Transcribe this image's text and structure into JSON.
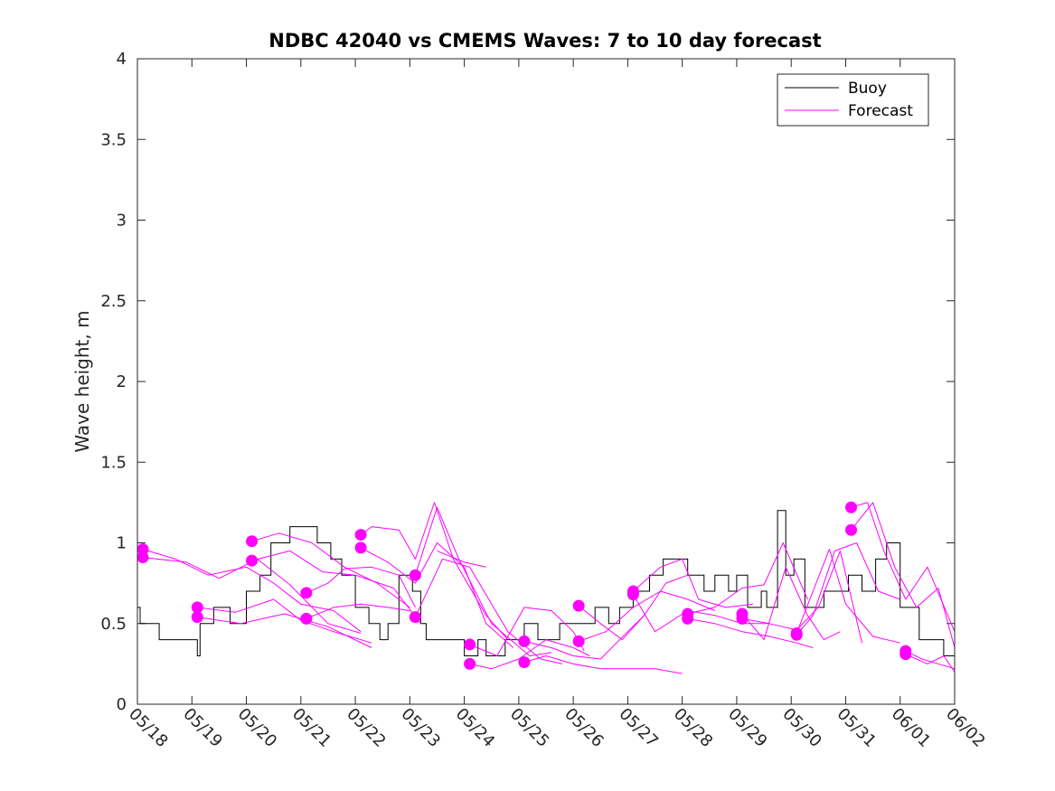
{
  "chart_data": {
    "type": "line",
    "title": "NDBC 42040 vs CMEMS Waves: 7 to 10 day forecast",
    "xlabel": "",
    "ylabel": "Wave height, m",
    "x_ticks": [
      "05/18",
      "05/19",
      "05/20",
      "05/21",
      "05/22",
      "05/23",
      "05/24",
      "05/25",
      "05/26",
      "05/27",
      "05/28",
      "05/29",
      "05/30",
      "05/31",
      "06/01",
      "06/02"
    ],
    "y_ticks": [
      "0",
      "0.5",
      "1",
      "1.5",
      "2",
      "2.5",
      "3",
      "3.5",
      "4"
    ],
    "xlim": [
      0,
      15
    ],
    "ylim": [
      0,
      4
    ],
    "x_unit": "days after 05/18",
    "legend": {
      "position": "top-right",
      "entries": [
        "Buoy",
        "Forecast"
      ]
    },
    "colors": {
      "buoy": "#000000",
      "forecast": "#ff00ff"
    },
    "buoy": {
      "name": "Buoy",
      "x": [
        0,
        0.05,
        0.05,
        0.4,
        0.4,
        1.1,
        1.1,
        1.15,
        1.15,
        1.4,
        1.4,
        1.7,
        1.7,
        2.0,
        2.0,
        2.25,
        2.25,
        2.45,
        2.45,
        2.8,
        2.8,
        3.3,
        3.3,
        3.55,
        3.55,
        3.75,
        3.75,
        4.0,
        4.0,
        4.25,
        4.25,
        4.45,
        4.45,
        4.6,
        4.6,
        4.8,
        4.8,
        5.05,
        5.05,
        5.2,
        5.2,
        5.3,
        5.3,
        6.0,
        6.0,
        6.25,
        6.25,
        6.4,
        6.4,
        6.75,
        6.75,
        7.1,
        7.1,
        7.35,
        7.35,
        7.75,
        7.75,
        8.4,
        8.4,
        8.65,
        8.65,
        8.85,
        8.85,
        9.1,
        9.1,
        9.4,
        9.4,
        9.65,
        9.65,
        10.1,
        10.1,
        10.4,
        10.4,
        10.6,
        10.6,
        10.85,
        10.85,
        11.0,
        11.0,
        11.2,
        11.2,
        11.45,
        11.45,
        11.55,
        11.55,
        11.75,
        11.75,
        11.9,
        11.9,
        12.05,
        12.05,
        12.25,
        12.25,
        12.6,
        12.6,
        13.05,
        13.05,
        13.3,
        13.3,
        13.55,
        13.55,
        13.75,
        13.75,
        14.0,
        14.0,
        14.35,
        14.35,
        14.8,
        14.8,
        15.0
      ],
      "values": [
        0.6,
        0.6,
        0.5,
        0.5,
        0.4,
        0.4,
        0.3,
        0.3,
        0.5,
        0.5,
        0.6,
        0.6,
        0.5,
        0.5,
        0.7,
        0.7,
        0.8,
        0.8,
        1.0,
        1.0,
        1.1,
        1.1,
        1.0,
        1.0,
        0.9,
        0.9,
        0.8,
        0.8,
        0.6,
        0.6,
        0.5,
        0.5,
        0.4,
        0.4,
        0.5,
        0.5,
        0.8,
        0.8,
        0.7,
        0.7,
        0.5,
        0.5,
        0.4,
        0.4,
        0.3,
        0.3,
        0.4,
        0.4,
        0.3,
        0.3,
        0.4,
        0.4,
        0.5,
        0.5,
        0.4,
        0.4,
        0.5,
        0.5,
        0.6,
        0.6,
        0.5,
        0.5,
        0.6,
        0.6,
        0.7,
        0.7,
        0.8,
        0.8,
        0.9,
        0.9,
        0.8,
        0.8,
        0.7,
        0.7,
        0.8,
        0.8,
        0.7,
        0.7,
        0.8,
        0.8,
        0.6,
        0.6,
        0.7,
        0.7,
        0.6,
        0.6,
        1.2,
        1.2,
        0.8,
        0.8,
        0.9,
        0.9,
        0.6,
        0.6,
        0.7,
        0.7,
        0.8,
        0.8,
        0.7,
        0.7,
        0.9,
        0.9,
        1.0,
        1.0,
        0.6,
        0.6,
        0.4,
        0.4,
        0.3,
        0.3
      ]
    },
    "forecast_series": [
      {
        "x": [
          0.1,
          0.7,
          1.3,
          2.0,
          2.5,
          3.0,
          3.6,
          4.1
        ],
        "values": [
          0.96,
          0.9,
          0.8,
          0.85,
          0.75,
          0.62,
          0.58,
          0.45
        ]
      },
      {
        "x": [
          0.1,
          0.9,
          1.5,
          2.2,
          2.8,
          3.5,
          4.1
        ],
        "values": [
          0.91,
          0.88,
          0.78,
          0.9,
          0.74,
          0.5,
          0.44
        ]
      },
      {
        "x": [
          1.1,
          1.8,
          2.5,
          3.0,
          3.6,
          4.3
        ],
        "values": [
          0.6,
          0.57,
          0.65,
          0.52,
          0.45,
          0.38
        ]
      },
      {
        "x": [
          1.1,
          1.9,
          2.7,
          3.5,
          4.3
        ],
        "values": [
          0.54,
          0.5,
          0.56,
          0.48,
          0.35
        ]
      },
      {
        "x": [
          2.1,
          2.6,
          3.2,
          3.8,
          4.4,
          5.0
        ],
        "values": [
          1.01,
          1.06,
          1.0,
          0.85,
          0.75,
          0.6
        ]
      },
      {
        "x": [
          2.1,
          2.8,
          3.4,
          4.0,
          4.7,
          5.2
        ],
        "values": [
          0.89,
          0.95,
          0.82,
          0.8,
          0.72,
          0.5
        ]
      },
      {
        "x": [
          3.1,
          3.5,
          3.8,
          4.3,
          4.8,
          5.1
        ],
        "values": [
          0.69,
          0.75,
          0.84,
          0.85,
          0.8,
          0.6
        ]
      },
      {
        "x": [
          3.1,
          3.6,
          4.1,
          4.6,
          5.0
        ],
        "values": [
          0.53,
          0.6,
          0.62,
          0.6,
          0.58
        ]
      },
      {
        "x": [
          4.1,
          4.3,
          4.8,
          5.1,
          5.45,
          5.8,
          6.4,
          6.8
        ],
        "values": [
          1.05,
          1.1,
          1.08,
          0.9,
          1.25,
          0.9,
          0.55,
          0.4
        ]
      },
      {
        "x": [
          4.1,
          4.6,
          5.1,
          5.5,
          6.0,
          6.4,
          6.9
        ],
        "values": [
          0.97,
          0.88,
          0.75,
          1.0,
          0.85,
          0.5,
          0.35
        ]
      },
      {
        "x": [
          5.1,
          5.5,
          5.9,
          6.5,
          7.2,
          7.6
        ],
        "values": [
          0.8,
          1.22,
          0.9,
          0.5,
          0.3,
          0.32
        ]
      },
      {
        "x": [
          5.1,
          5.6,
          6.1,
          6.8,
          7.4,
          7.8
        ],
        "values": [
          0.54,
          0.9,
          0.85,
          0.45,
          0.28,
          0.25
        ]
      },
      {
        "x": [
          5.5,
          6.0,
          6.4
        ],
        "values": [
          0.95,
          0.88,
          0.85
        ]
      },
      {
        "x": [
          6.1,
          6.6,
          7.1,
          7.6,
          8.0,
          8.2
        ],
        "values": [
          0.37,
          0.3,
          0.6,
          0.58,
          0.45,
          0.33
        ]
      },
      {
        "x": [
          6.1,
          6.5,
          7.0,
          7.5,
          8.0,
          8.3
        ],
        "values": [
          0.25,
          0.22,
          0.28,
          0.4,
          0.35,
          0.3
        ]
      },
      {
        "x": [
          7.1,
          7.6,
          8.0,
          8.5,
          9.0,
          9.3
        ],
        "values": [
          0.39,
          0.35,
          0.3,
          0.28,
          0.45,
          0.55
        ]
      },
      {
        "x": [
          7.1,
          7.5,
          8.0,
          8.5,
          9.0,
          9.5,
          10.0
        ],
        "values": [
          0.26,
          0.3,
          0.25,
          0.22,
          0.22,
          0.22,
          0.19
        ]
      },
      {
        "x": [
          8.1,
          8.5,
          8.9,
          9.3,
          9.7,
          10.1
        ],
        "values": [
          0.61,
          0.5,
          0.4,
          0.55,
          0.75,
          0.8
        ]
      },
      {
        "x": [
          8.1,
          8.6,
          9.1,
          9.6,
          10.1,
          10.6
        ],
        "values": [
          0.39,
          0.45,
          0.6,
          0.7,
          0.65,
          0.58
        ]
      },
      {
        "x": [
          9.1,
          9.6,
          10.0,
          10.3,
          10.8,
          11.3
        ],
        "values": [
          0.7,
          0.85,
          0.9,
          0.65,
          0.6,
          0.62
        ]
      },
      {
        "x": [
          9.1,
          9.5,
          10.1,
          10.6,
          11.1,
          11.6
        ],
        "values": [
          0.68,
          0.45,
          0.58,
          0.55,
          0.5,
          0.5
        ]
      },
      {
        "x": [
          10.1,
          10.6,
          11.1,
          11.5,
          11.85,
          12.3
        ],
        "values": [
          0.56,
          0.6,
          0.72,
          0.74,
          1.0,
          0.65
        ]
      },
      {
        "x": [
          10.1,
          10.6,
          11.1,
          11.6,
          12.1,
          12.4
        ],
        "values": [
          0.53,
          0.5,
          0.45,
          0.42,
          0.38,
          0.35
        ]
      },
      {
        "x": [
          11.1,
          11.5,
          11.9,
          12.3,
          12.6,
          12.9
        ],
        "values": [
          0.56,
          0.4,
          0.85,
          0.55,
          0.4,
          0.45
        ]
      },
      {
        "x": [
          11.1,
          11.6,
          12.1,
          12.5,
          12.9,
          13.3
        ],
        "values": [
          0.53,
          0.5,
          0.46,
          0.6,
          0.95,
          0.38
        ]
      },
      {
        "x": [
          12.1,
          12.4,
          12.7,
          13.0,
          13.5,
          14.0
        ],
        "values": [
          0.44,
          0.7,
          0.96,
          0.62,
          0.42,
          0.38
        ]
      },
      {
        "x": [
          12.1,
          12.4,
          12.8,
          13.2,
          13.6,
          14.0
        ],
        "values": [
          0.43,
          0.55,
          0.95,
          1.0,
          0.7,
          0.65
        ]
      },
      {
        "x": [
          13.1,
          13.4,
          13.7,
          14.1,
          14.5,
          15.0
        ],
        "values": [
          1.22,
          1.25,
          0.95,
          0.65,
          0.85,
          0.45
        ]
      },
      {
        "x": [
          13.1,
          13.5,
          13.9,
          14.3,
          14.7,
          15.0
        ],
        "values": [
          1.08,
          1.25,
          0.85,
          0.6,
          0.72,
          0.35
        ]
      },
      {
        "x": [
          14.1,
          14.4,
          14.8,
          15.0
        ],
        "values": [
          0.33,
          0.28,
          0.24,
          0.22
        ]
      },
      {
        "x": [
          14.1,
          14.5,
          14.8,
          15.0
        ],
        "values": [
          0.31,
          0.25,
          0.3,
          0.2
        ]
      }
    ],
    "forecast_start_markers": {
      "x": [
        0.1,
        0.1,
        1.1,
        1.1,
        2.1,
        2.1,
        3.1,
        3.1,
        4.1,
        4.1,
        5.1,
        5.1,
        6.1,
        6.1,
        7.1,
        7.1,
        8.1,
        8.1,
        9.1,
        9.1,
        10.1,
        10.1,
        11.1,
        11.1,
        12.1,
        12.1,
        13.1,
        13.1,
        14.1,
        14.1
      ],
      "values": [
        0.96,
        0.91,
        0.6,
        0.54,
        1.01,
        0.89,
        0.69,
        0.53,
        1.05,
        0.97,
        0.8,
        0.54,
        0.37,
        0.25,
        0.39,
        0.26,
        0.61,
        0.39,
        0.7,
        0.68,
        0.56,
        0.53,
        0.56,
        0.53,
        0.44,
        0.43,
        1.22,
        1.08,
        0.33,
        0.31
      ]
    }
  }
}
